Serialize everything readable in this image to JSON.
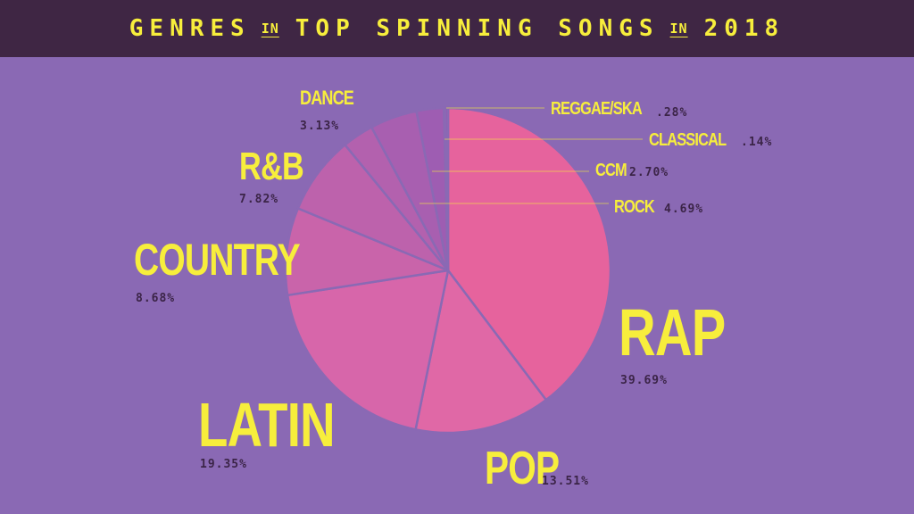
{
  "title": {
    "part1": "GENRES",
    "in1": "IN",
    "part2": "TOP SPINNING SONGS",
    "in2": "IN",
    "part3": "2018"
  },
  "chart_data": {
    "type": "pie",
    "title": "GENRES IN TOP SPINNING SONGS IN 2018",
    "slices": [
      {
        "name": "RAP",
        "value": 39.69,
        "label": "39.69%",
        "color": "#e6639d"
      },
      {
        "name": "POP",
        "value": 13.51,
        "label": "13.51%",
        "color": "#e068a6"
      },
      {
        "name": "LATIN",
        "value": 19.35,
        "label": "19.35%",
        "color": "#d766aa"
      },
      {
        "name": "COUNTRY",
        "value": 8.68,
        "label": "8.68%",
        "color": "#c964aa"
      },
      {
        "name": "R&B",
        "value": 7.82,
        "label": "7.82%",
        "color": "#bd62ac"
      },
      {
        "name": "DANCE",
        "value": 3.13,
        "label": "3.13%",
        "color": "#b361ae"
      },
      {
        "name": "ROCK",
        "value": 4.69,
        "label": "4.69%",
        "color": "#a85fb0"
      },
      {
        "name": "CCM",
        "value": 2.7,
        "label": "2.70%",
        "color": "#9e5db2"
      },
      {
        "name": "CLASSICAL",
        "value": 0.14,
        "label": ".14%",
        "color": "#965bb3"
      },
      {
        "name": "REGGAE/SKA",
        "value": 0.28,
        "label": ".28%",
        "color": "#935bb3"
      }
    ]
  }
}
